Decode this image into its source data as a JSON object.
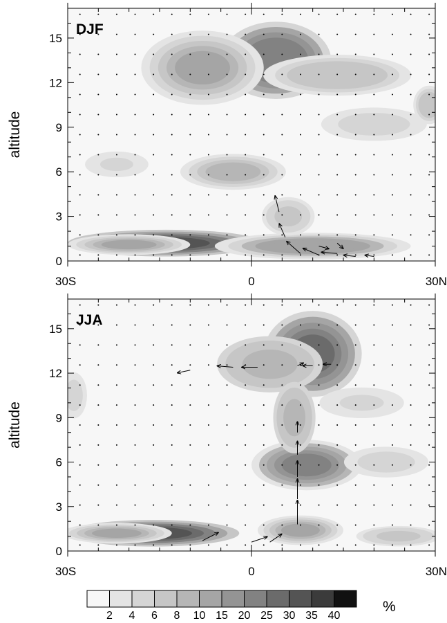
{
  "chart_data": [
    {
      "type": "heatmap",
      "panel_label": "DJF",
      "xlabel": "",
      "ylabel": "altitude",
      "xlim": [
        -30,
        30
      ],
      "ylim": [
        0,
        17
      ],
      "x_ticks": [
        -30,
        0,
        30
      ],
      "x_tick_labels": [
        "30S",
        "0",
        "30N"
      ],
      "y_ticks": [
        0,
        3,
        6,
        9,
        12,
        15
      ],
      "y_tick_labels": [
        "0",
        "3",
        "6",
        "9",
        "12",
        "15"
      ],
      "blobs": [
        {
          "x": -14,
          "y": 1.2,
          "rx": 16,
          "ry": 0.9,
          "v": 34
        },
        {
          "x": -20,
          "y": 1.1,
          "rx": 10,
          "ry": 0.7,
          "v": 12
        },
        {
          "x": 10,
          "y": 1.0,
          "rx": 16,
          "ry": 0.9,
          "v": 14
        },
        {
          "x": 4,
          "y": 13.5,
          "rx": 9,
          "ry": 2.6,
          "v": 26
        },
        {
          "x": -8,
          "y": 13.0,
          "rx": 10,
          "ry": 2.5,
          "v": 12
        },
        {
          "x": 14,
          "y": 12.5,
          "rx": 14,
          "ry": 1.6,
          "v": 8
        },
        {
          "x": -3,
          "y": 6.0,
          "rx": 10,
          "ry": 1.4,
          "v": 9
        },
        {
          "x": 20,
          "y": 9.2,
          "rx": 10,
          "ry": 1.3,
          "v": 6
        },
        {
          "x": -22,
          "y": 6.5,
          "rx": 6,
          "ry": 1.0,
          "v": 5
        },
        {
          "x": 29,
          "y": 10.5,
          "rx": 3,
          "ry": 1.5,
          "v": 8
        },
        {
          "x": 6,
          "y": 3.0,
          "rx": 5,
          "ry": 1.5,
          "v": 7
        }
      ],
      "vectors": [
        {
          "x": 4.5,
          "y": 3.3,
          "u": -0.4,
          "w": 1.2
        },
        {
          "x": 5.5,
          "y": 1.6,
          "u": -0.6,
          "w": 1.0
        },
        {
          "x": 8,
          "y": 0.5,
          "u": -1.4,
          "w": 0.9
        },
        {
          "x": 11,
          "y": 0.4,
          "u": -1.6,
          "w": 0.5
        },
        {
          "x": 14,
          "y": 0.5,
          "u": -1.6,
          "w": 0.1
        },
        {
          "x": 17,
          "y": 0.3,
          "u": -1.2,
          "w": 0.1
        },
        {
          "x": 20,
          "y": 0.3,
          "u": -0.9,
          "w": 0.1
        },
        {
          "x": 11,
          "y": 1.0,
          "u": 1.0,
          "w": -0.2
        },
        {
          "x": 14,
          "y": 1.2,
          "u": 0.6,
          "w": -0.4
        }
      ]
    },
    {
      "type": "heatmap",
      "panel_label": "JJA",
      "xlabel": "",
      "ylabel": "altitude",
      "xlim": [
        -30,
        30
      ],
      "ylim": [
        0,
        17
      ],
      "x_ticks": [
        -30,
        0,
        30
      ],
      "x_tick_labels": [
        "30S",
        "0",
        "30N"
      ],
      "y_ticks": [
        0,
        3,
        6,
        9,
        12,
        15
      ],
      "y_tick_labels": [
        "0",
        "3",
        "6",
        "9",
        "12",
        "15"
      ],
      "blobs": [
        {
          "x": -16,
          "y": 1.2,
          "rx": 14,
          "ry": 0.9,
          "v": 34
        },
        {
          "x": -22,
          "y": 1.2,
          "rx": 9,
          "ry": 0.7,
          "v": 12
        },
        {
          "x": 8,
          "y": 1.4,
          "rx": 7,
          "ry": 1.0,
          "v": 12
        },
        {
          "x": 10,
          "y": 13.3,
          "rx": 8,
          "ry": 2.9,
          "v": 32
        },
        {
          "x": 3,
          "y": 12.6,
          "rx": 10,
          "ry": 2.2,
          "v": 10
        },
        {
          "x": 9,
          "y": 5.8,
          "rx": 9,
          "ry": 1.7,
          "v": 22
        },
        {
          "x": 7,
          "y": 9.0,
          "rx": 4,
          "ry": 2.8,
          "v": 10
        },
        {
          "x": 22,
          "y": 6.0,
          "rx": 8,
          "ry": 1.2,
          "v": 6
        },
        {
          "x": 18,
          "y": 10.0,
          "rx": 8,
          "ry": 1.2,
          "v": 5
        },
        {
          "x": -29,
          "y": 10.5,
          "rx": 2.5,
          "ry": 1.8,
          "v": 6
        },
        {
          "x": 24,
          "y": 1.0,
          "rx": 8,
          "ry": 0.8,
          "v": 7
        }
      ],
      "vectors": [
        {
          "x": 7.5,
          "y": 1.8,
          "u": 0.0,
          "w": 1.8
        },
        {
          "x": 7.5,
          "y": 3.5,
          "u": 0.0,
          "w": 1.5
        },
        {
          "x": 7.5,
          "y": 5.0,
          "u": 0.0,
          "w": 1.2
        },
        {
          "x": 7.5,
          "y": 6.5,
          "u": 0.0,
          "w": 1.0
        },
        {
          "x": 7.5,
          "y": 8.0,
          "u": 0.0,
          "w": 0.8
        },
        {
          "x": 7.5,
          "y": 12.5,
          "u": 0.6,
          "w": 0.2
        },
        {
          "x": 0,
          "y": 0.6,
          "u": 1.6,
          "w": 0.4
        },
        {
          "x": 3,
          "y": 0.6,
          "u": 1.2,
          "w": 0.6
        },
        {
          "x": -8,
          "y": 0.7,
          "u": 1.6,
          "w": 0.6
        },
        {
          "x": 1,
          "y": 12.4,
          "u": -1.6,
          "w": 0.0
        },
        {
          "x": -3,
          "y": 12.4,
          "u": -1.6,
          "w": 0.1
        },
        {
          "x": -10,
          "y": 12.2,
          "u": -1.3,
          "w": -0.2
        },
        {
          "x": 10,
          "y": 12.5,
          "u": -1.0,
          "w": 0.0
        },
        {
          "x": 13,
          "y": 12.6,
          "u": -0.8,
          "w": 0.0
        }
      ]
    }
  ],
  "colorbar": {
    "levels": [
      2,
      4,
      6,
      8,
      10,
      15,
      20,
      25,
      30,
      35,
      40
    ],
    "labels": [
      "2",
      "4",
      "6",
      "8",
      "10",
      "15",
      "20",
      "25",
      "30",
      "35",
      "40"
    ],
    "colors": [
      "#f7f7f7",
      "#e4e4e4",
      "#d5d5d5",
      "#c6c6c6",
      "#b6b6b6",
      "#a5a5a5",
      "#949494",
      "#828282",
      "#6b6b6b",
      "#545454",
      "#3b3b3b",
      "#111111"
    ],
    "unit": "%"
  }
}
